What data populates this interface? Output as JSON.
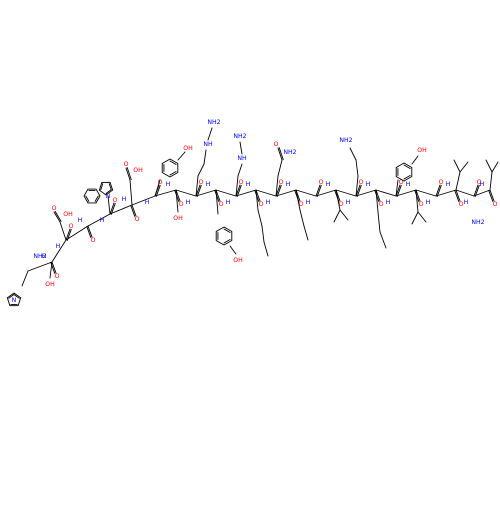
{
  "colors": {
    "bond": "#000000",
    "oxygen": "#ff0000",
    "nitrogen": "#0000ff",
    "carbon": "#000000"
  },
  "labels": {
    "amine_n_terminus": "NH2",
    "amide_c_terminus": "NH2",
    "hydroxyl": "OH",
    "amide_nh": "H",
    "oxygen": "O",
    "nitrogen": "N",
    "carbonyl_oxygen": "O",
    "imidazole_n": "N",
    "indole_n": "N",
    "guanidine_n": "NH",
    "primary_amine": "NH2"
  },
  "notes": {
    "molecule_type": "peptide structure drawing"
  }
}
